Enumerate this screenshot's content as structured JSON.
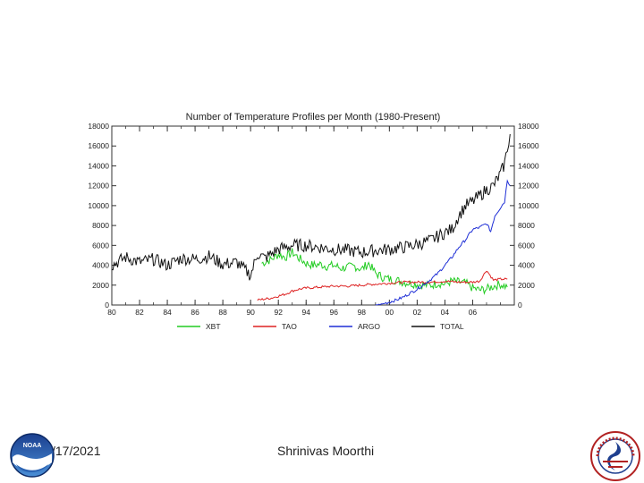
{
  "chart_data": {
    "type": "line",
    "title": "Number of Temperature Profiles per Month (1980-Present)",
    "x_ticks": [
      "80",
      "82",
      "84",
      "86",
      "88",
      "90",
      "92",
      "94",
      "96",
      "98",
      "00",
      "02",
      "04",
      "06"
    ],
    "y_ticks": [
      0,
      2000,
      4000,
      6000,
      8000,
      10000,
      12000,
      14000,
      16000,
      18000
    ],
    "xlim": [
      1980,
      2009
    ],
    "ylim": [
      0,
      18000
    ],
    "series": [
      {
        "name": "XBT",
        "color": "#22cc22",
        "x": [
          1990.8,
          1991.5,
          1992.0,
          1992.5,
          1993.0,
          1993.5,
          1994.0,
          1994.5,
          1995.0,
          1995.5,
          1996.0,
          1996.5,
          1997.0,
          1997.5,
          1998.0,
          1998.5,
          1999.0,
          1999.5,
          2000.0,
          2000.5,
          2001.0,
          2001.5,
          2002.0,
          2002.5,
          2003.0,
          2003.5,
          2004.0,
          2004.5,
          2005.0,
          2005.5,
          2006.0,
          2006.5,
          2007.0,
          2007.5,
          2008.0,
          2008.5
        ],
        "values": [
          4200,
          4600,
          5100,
          4800,
          5300,
          4700,
          4200,
          4000,
          4100,
          3900,
          4000,
          3700,
          3800,
          3900,
          3600,
          4200,
          3200,
          2800,
          2600,
          2500,
          2300,
          2200,
          2100,
          2000,
          2000,
          2200,
          2100,
          2400,
          2300,
          2200,
          1700,
          1500,
          1600,
          1900,
          2100,
          1800
        ]
      },
      {
        "name": "TAO",
        "color": "#dd2222",
        "x": [
          1990.5,
          1991.0,
          1991.5,
          1992.0,
          1992.5,
          1993.0,
          1993.5,
          1994.0,
          1995.0,
          1996.0,
          1997.0,
          1998.0,
          1999.0,
          2000.0,
          2001.0,
          2002.0,
          2003.0,
          2004.0,
          2005.0,
          2006.0,
          2006.5,
          2007.0,
          2007.5,
          2008.0,
          2008.5
        ],
        "values": [
          500,
          600,
          700,
          900,
          1100,
          1400,
          1600,
          1700,
          1800,
          1900,
          1900,
          2000,
          2100,
          2200,
          2300,
          2300,
          2300,
          2400,
          2300,
          2300,
          2400,
          3500,
          2500,
          2600,
          2600
        ]
      },
      {
        "name": "ARGO",
        "color": "#1f2fd6",
        "x": [
          1999.0,
          1999.5,
          2000.0,
          2000.5,
          2001.0,
          2001.5,
          2002.0,
          2002.5,
          2003.0,
          2003.5,
          2004.0,
          2004.5,
          2005.0,
          2005.5,
          2006.0,
          2006.5,
          2007.0,
          2007.3,
          2007.6,
          2008.0,
          2008.3,
          2008.5,
          2008.7
        ],
        "values": [
          0,
          100,
          300,
          500,
          800,
          1200,
          1600,
          2100,
          2600,
          3200,
          4000,
          4800,
          5800,
          6600,
          7600,
          7800,
          8200,
          7400,
          9000,
          9800,
          10400,
          12600,
          12000
        ]
      },
      {
        "name": "TOTAL",
        "color": "#111111",
        "x": [
          1980.0,
          1981.0,
          1982.0,
          1983.0,
          1984.0,
          1985.0,
          1986.0,
          1987.0,
          1988.0,
          1989.0,
          1990.0,
          1990.5,
          1991.0,
          1992.0,
          1993.0,
          1994.0,
          1995.0,
          1996.0,
          1997.0,
          1998.0,
          1999.0,
          2000.0,
          2001.0,
          2002.0,
          2003.0,
          2004.0,
          2004.5,
          2005.0,
          2005.5,
          2006.0,
          2006.5,
          2007.0,
          2007.5,
          2008.0,
          2008.3,
          2008.5,
          2008.7
        ],
        "values": [
          4000,
          4800,
          4300,
          4600,
          4000,
          4700,
          4600,
          4900,
          4100,
          4300,
          3000,
          5200,
          4700,
          5600,
          6000,
          6000,
          5800,
          5600,
          5500,
          5300,
          5500,
          5600,
          5800,
          6100,
          6500,
          7300,
          7600,
          9000,
          10000,
          10400,
          11000,
          11600,
          12000,
          13200,
          14200,
          15800,
          17200
        ]
      }
    ]
  },
  "footer": {
    "date": "/17/2021",
    "author": "Shrinivas Moorthi"
  },
  "logos": {
    "left": "NOAA",
    "right": "NATIONAL WEATHER SERVICE"
  }
}
